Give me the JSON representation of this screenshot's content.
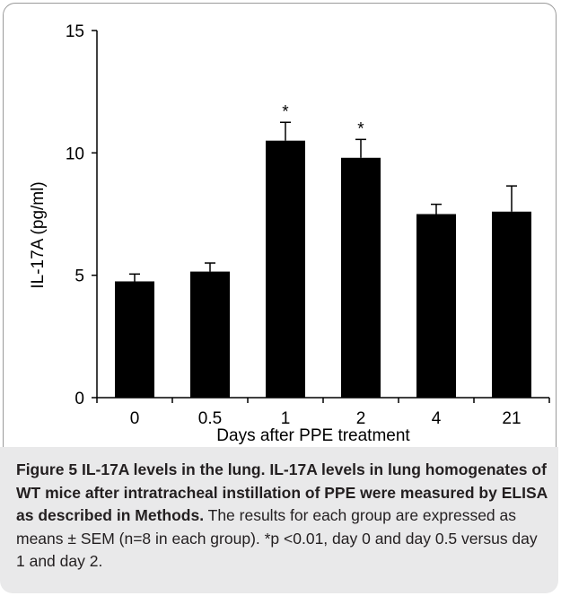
{
  "chart_data": {
    "type": "bar",
    "categories": [
      "0",
      "0.5",
      "1",
      "2",
      "4",
      "21"
    ],
    "values": [
      4.75,
      5.15,
      10.5,
      9.8,
      7.5,
      7.6
    ],
    "errors": [
      0.3,
      0.35,
      0.75,
      0.75,
      0.4,
      1.05
    ],
    "significance_markers": [
      "",
      "",
      "*",
      "*",
      "",
      ""
    ],
    "xlabel": "Days after PPE treatment",
    "ylabel": "IL-17A (pg/ml)",
    "ylim": [
      0,
      15
    ],
    "yticks": [
      0,
      5,
      10,
      15
    ],
    "bar_color": "#000000",
    "grid": false
  },
  "caption": {
    "figure_label": "Figure 5",
    "bold_text": "IL-17A levels in the lung. IL-17A levels in lung homogenates of WT mice after intratracheal instillation of PPE were measured by ELISA as described in Methods.",
    "normal_text": "The results for each group are expressed as means ± SEM (n=8 in each group). *p <0.01, day 0 and day 0.5 versus day 1 and day 2."
  }
}
